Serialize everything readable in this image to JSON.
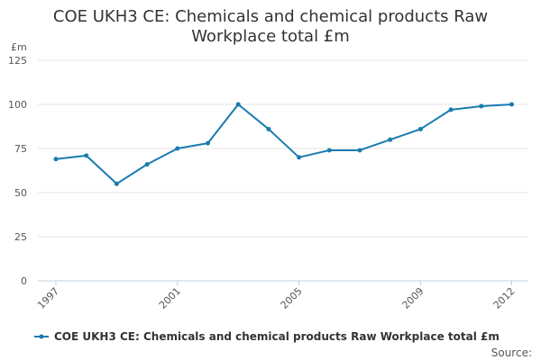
{
  "chart_data": {
    "type": "line",
    "title_lines": [
      "COE UKH3 CE: Chemicals and chemical products Raw",
      "Workplace total £m"
    ],
    "ylabel": "£m",
    "xlabel": "",
    "x": [
      1997,
      1998,
      1999,
      2000,
      2001,
      2002,
      2003,
      2004,
      2005,
      2006,
      2007,
      2008,
      2009,
      2010,
      2011,
      2012
    ],
    "series": [
      {
        "name": "COE UKH3 CE: Chemicals and chemical products Raw Workplace total £m",
        "color": "#1a7bb0",
        "values": [
          69,
          71,
          55,
          66,
          75,
          78,
          100,
          86,
          70,
          74,
          74,
          80,
          86,
          97,
          99,
          100
        ]
      }
    ],
    "ylim": [
      0,
      125
    ],
    "yticks": [
      0,
      25,
      50,
      75,
      100,
      125
    ],
    "xticks": [
      1997,
      2001,
      2005,
      2009,
      2012
    ],
    "grid": true,
    "legend_position": "bottom"
  },
  "footer": {
    "source_label": "Source:"
  }
}
